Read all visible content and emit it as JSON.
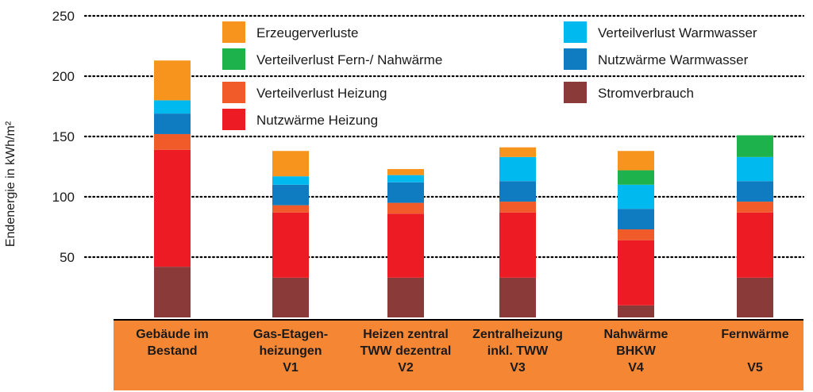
{
  "chart_data": {
    "type": "bar",
    "stacked": true,
    "ylabel": "Endenergie in kWh/m²",
    "ylim": [
      0,
      250
    ],
    "yticks": [
      50,
      100,
      150,
      200,
      250
    ],
    "grid": "horizontal dotted",
    "legend_position": "top",
    "categories": [
      [
        "Gebäude im",
        "Bestand"
      ],
      [
        "Gas-Etagen-",
        "heizungen",
        "V1"
      ],
      [
        "Heizen zentral",
        "TWW dezentral",
        "V2"
      ],
      [
        "Zentralheizung",
        "inkl. TWW",
        "V3"
      ],
      [
        "Nahwärme",
        "BHKW",
        "V4"
      ],
      [
        "Fernwärme",
        "",
        "V5"
      ]
    ],
    "series": [
      {
        "name": "Stromverbrauch",
        "color": "#8B3A3A",
        "values": [
          42,
          33,
          33,
          33,
          10,
          33
        ]
      },
      {
        "name": "Nutzwärme Heizung",
        "color": "#ED1C24",
        "values": [
          97,
          54,
          53,
          54,
          54,
          54
        ]
      },
      {
        "name": "Verteilverlust Heizung",
        "color": "#F15A29",
        "values": [
          13,
          6,
          9,
          9,
          9,
          9
        ]
      },
      {
        "name": "Nutzwärme Warmwasser",
        "color": "#0F7BC0",
        "values": [
          17,
          17,
          17,
          17,
          17,
          17
        ]
      },
      {
        "name": "Verteilverlust Warmwasser",
        "color": "#00B9EE",
        "values": [
          11,
          7,
          6,
          20,
          20,
          20
        ]
      },
      {
        "name": "Verteilverlust Fern-/ Nahwärme",
        "color": "#1DB24B",
        "values": [
          0,
          0,
          0,
          0,
          12,
          18
        ]
      },
      {
        "name": "Erzeugerverluste",
        "color": "#F7941D",
        "values": [
          33,
          21,
          5,
          8,
          16,
          0
        ]
      }
    ],
    "category_band_color": "#F58634"
  }
}
